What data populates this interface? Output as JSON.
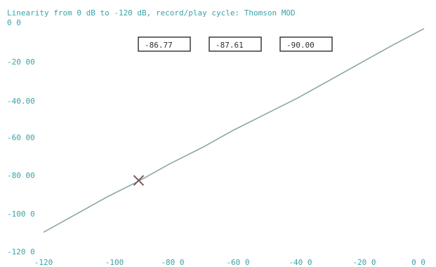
{
  "title": "Linearity from 0 dB to -120 dB, record/play cycle:   Thomson MOD",
  "colors": {
    "axis_text": "#3aa3a6",
    "series": "#8aa7a5",
    "cursor": "#7b5b5b",
    "box": "#3a3a3a"
  },
  "readouts": [
    "-86.77",
    "-87.61",
    "-90.00"
  ],
  "chart_data": {
    "type": "line",
    "title": "Linearity from 0 dB to -120 dB, record/play cycle:   Thomson MOD",
    "xlabel": "",
    "ylabel": "",
    "xlim": [
      -120,
      0
    ],
    "ylim": [
      -120,
      0
    ],
    "x_ticks": [
      "-120",
      "-100",
      "-80 0",
      "-60 0",
      "-40 0",
      "-20 0",
      "0 0"
    ],
    "y_ticks": [
      "0 0",
      "-20 00",
      "-40.00",
      "-60 00",
      "-80 00",
      "-100 0",
      "-120 0"
    ],
    "series": [
      {
        "x": [
          -120,
          -110,
          -100,
          -90,
          -80,
          -70,
          -60,
          -50,
          -40,
          -30,
          -20,
          -10,
          0
        ],
        "values": [
          -117,
          -107,
          -97,
          -88,
          -78,
          -69,
          -59,
          -50,
          -41,
          -31,
          -21,
          -11,
          -1.5
        ]
      }
    ],
    "annotations": [
      {
        "label": "x-cursor",
        "x": -90,
        "y": -87.6
      }
    ]
  }
}
